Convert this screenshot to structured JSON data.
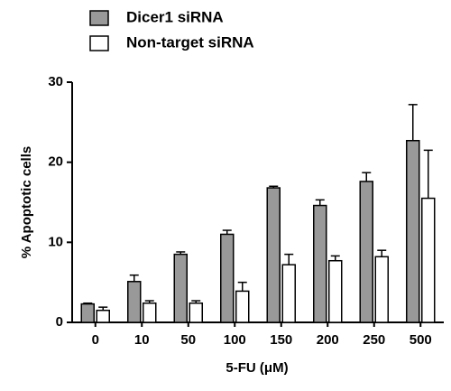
{
  "chart_data": {
    "type": "bar",
    "categories": [
      "0",
      "10",
      "50",
      "100",
      "150",
      "200",
      "250",
      "500"
    ],
    "x_label": "5-FU (μM)",
    "y_label": "% Apoptotic cells",
    "series": [
      {
        "name": "Dicer1 siRNA",
        "color": "#999999",
        "values": [
          2.3,
          5.1,
          8.5,
          11.0,
          16.8,
          14.6,
          17.6,
          22.7
        ],
        "errors": [
          0.1,
          0.8,
          0.3,
          0.5,
          0.2,
          0.7,
          1.1,
          4.5
        ]
      },
      {
        "name": "Non-target siRNA",
        "color": "#ffffff",
        "values": [
          1.5,
          2.4,
          2.4,
          3.9,
          7.2,
          7.7,
          8.2,
          15.5
        ],
        "errors": [
          0.4,
          0.3,
          0.3,
          1.1,
          1.3,
          0.6,
          0.8,
          6.0
        ]
      }
    ],
    "ylim": [
      0,
      30
    ],
    "yticks": [
      0,
      10,
      20,
      30
    ],
    "grid": false,
    "legend": "top"
  }
}
